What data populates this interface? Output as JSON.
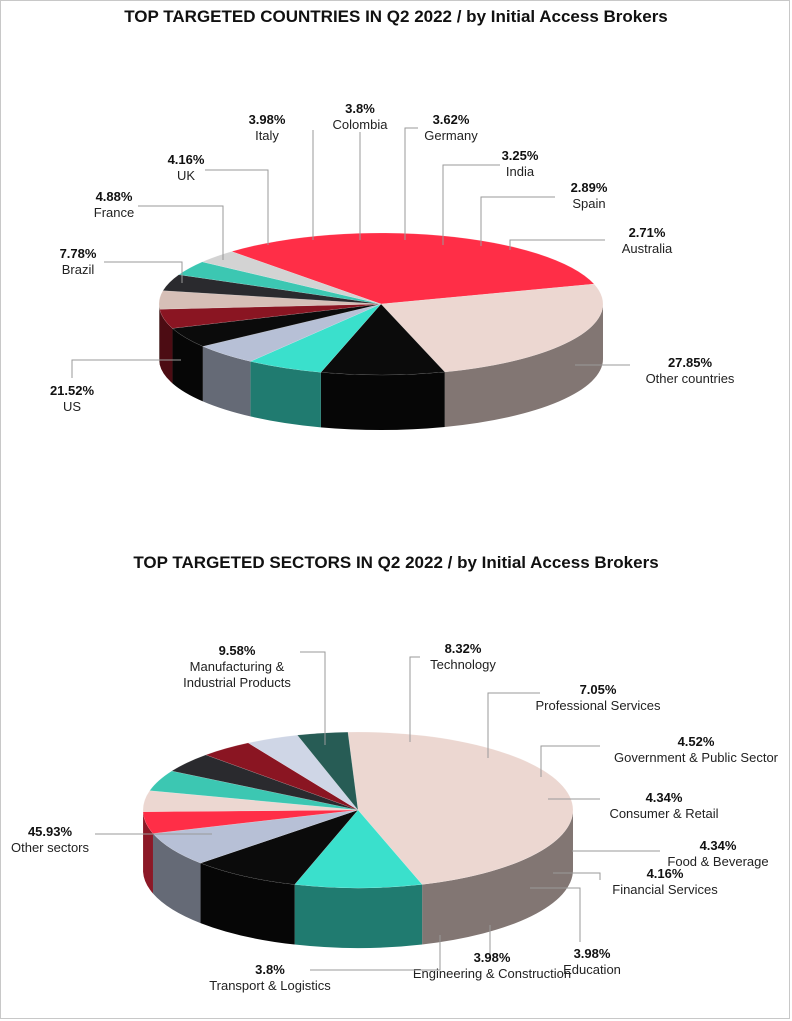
{
  "colors": {
    "mint": "#3ae0cc",
    "black": "#0b0b0b",
    "lavender": "#b7c0d6",
    "red": "#ff2e47",
    "blush": "#ecd7d1",
    "teal": "#3cc7b2",
    "charcoal": "#2a2a2e",
    "darkred": "#8a1522",
    "darkteal": "#275c55",
    "taupe": "#d6bfb7",
    "lightgray": "#d3d3d3",
    "palelavender": "#cfd6e6"
  },
  "chart_data": [
    {
      "type": "pie",
      "title": "TOP TARGETED COUNTRIES IN Q2 2022 / by Initial Access Brokers",
      "slices": [
        {
          "label": "Other countries",
          "value": 27.85,
          "pct_text": "27.85%",
          "color": "#ff2e47"
        },
        {
          "label": "US",
          "value": 21.52,
          "pct_text": "21.52%",
          "color": "#ecd7d1"
        },
        {
          "label": "Brazil",
          "value": 7.78,
          "pct_text": "7.78%",
          "color": "#0b0b0b"
        },
        {
          "label": "France",
          "value": 4.88,
          "pct_text": "4.88%",
          "color": "#3ae0cc"
        },
        {
          "label": "UK",
          "value": 4.16,
          "pct_text": "4.16%",
          "color": "#b7c0d6"
        },
        {
          "label": "Italy",
          "value": 3.98,
          "pct_text": "3.98%",
          "color": "#0b0b0b"
        },
        {
          "label": "Colombia",
          "value": 3.8,
          "pct_text": "3.8%",
          "color": "#8a1522"
        },
        {
          "label": "Germany",
          "value": 3.62,
          "pct_text": "3.62%",
          "color": "#d6bfb7"
        },
        {
          "label": "India",
          "value": 3.25,
          "pct_text": "3.25%",
          "color": "#2a2a2e"
        },
        {
          "label": "Spain",
          "value": 2.89,
          "pct_text": "2.89%",
          "color": "#3cc7b2"
        },
        {
          "label": "Australia",
          "value": 2.71,
          "pct_text": "2.71%",
          "color": "#d3d3d3"
        }
      ]
    },
    {
      "type": "pie",
      "title": "TOP TARGETED SECTORS IN Q2 2022 / by Initial Access Brokers",
      "slices": [
        {
          "label": "Other sectors",
          "value": 45.93,
          "pct_text": "45.93%",
          "color": "#ecd7d1"
        },
        {
          "label": "Manufacturing & Industrial Products",
          "value": 9.58,
          "pct_text": "9.58%",
          "color": "#3ae0cc"
        },
        {
          "label": "Technology",
          "value": 8.32,
          "pct_text": "8.32%",
          "color": "#0b0b0b"
        },
        {
          "label": "Professional Services",
          "value": 7.05,
          "pct_text": "7.05%",
          "color": "#b7c0d6"
        },
        {
          "label": "Government & Public Sector",
          "value": 4.52,
          "pct_text": "4.52%",
          "color": "#ff2e47"
        },
        {
          "label": "Consumer & Retail",
          "value": 4.34,
          "pct_text": "4.34%",
          "color": "#ecd7d1"
        },
        {
          "label": "Food & Beverage",
          "value": 4.34,
          "pct_text": "4.34%",
          "color": "#3cc7b2"
        },
        {
          "label": "Financial Services",
          "value": 4.16,
          "pct_text": "4.16%",
          "color": "#2a2a2e"
        },
        {
          "label": "Education",
          "value": 3.98,
          "pct_text": "3.98%",
          "color": "#8a1522"
        },
        {
          "label": "Engineering & Construction",
          "value": 3.98,
          "pct_text": "3.98%",
          "color": "#cfd6e6"
        },
        {
          "label": "Transport & Logistics",
          "value": 3.8,
          "pct_text": "3.8%",
          "color": "#275c55"
        }
      ]
    }
  ]
}
